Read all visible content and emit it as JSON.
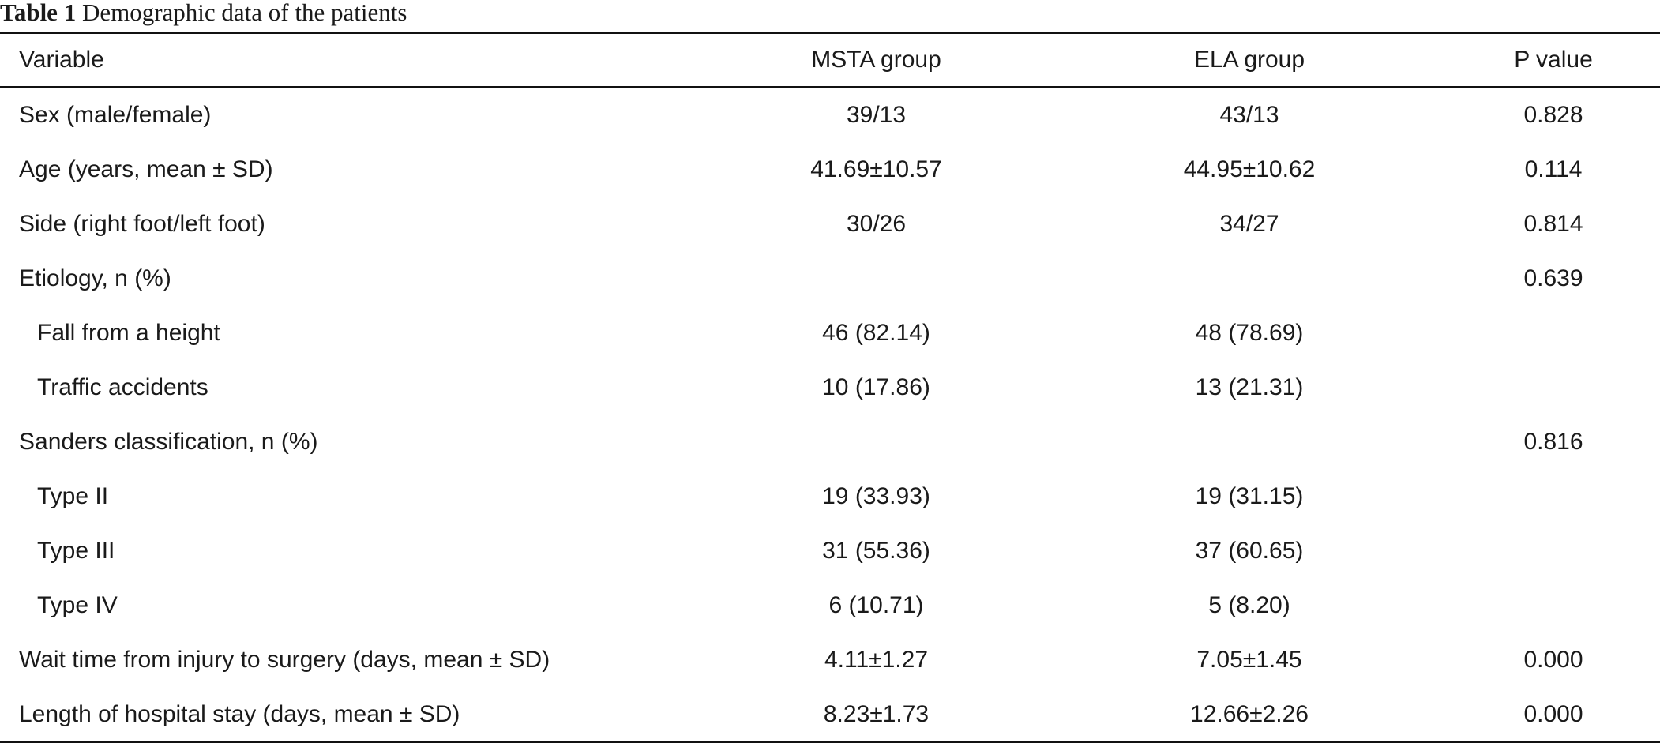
{
  "caption": {
    "label": "Table 1",
    "text": "Demographic data of the patients"
  },
  "table": {
    "headers": [
      "Variable",
      "MSTA group",
      "ELA group",
      "P value"
    ],
    "rows": [
      {
        "variable": "Sex (male/female)",
        "msta": "39/13",
        "ela": "43/13",
        "p": "0.828",
        "indent": false
      },
      {
        "variable": "Age (years, mean ± SD)",
        "msta": "41.69±10.57",
        "ela": "44.95±10.62",
        "p": "0.114",
        "indent": false
      },
      {
        "variable": "Side (right foot/left foot)",
        "msta": "30/26",
        "ela": "34/27",
        "p": "0.814",
        "indent": false
      },
      {
        "variable": "Etiology, n (%)",
        "msta": "",
        "ela": "",
        "p": "0.639",
        "indent": false
      },
      {
        "variable": "Fall from a height",
        "msta": "46 (82.14)",
        "ela": "48 (78.69)",
        "p": "",
        "indent": true
      },
      {
        "variable": "Traffic accidents",
        "msta": "10 (17.86)",
        "ela": "13 (21.31)",
        "p": "",
        "indent": true
      },
      {
        "variable": "Sanders classification, n (%)",
        "msta": "",
        "ela": "",
        "p": "0.816",
        "indent": false
      },
      {
        "variable": "Type II",
        "msta": "19 (33.93)",
        "ela": "19 (31.15)",
        "p": "",
        "indent": true
      },
      {
        "variable": "Type III",
        "msta": "31 (55.36)",
        "ela": "37 (60.65)",
        "p": "",
        "indent": true
      },
      {
        "variable": "Type IV",
        "msta": "6 (10.71)",
        "ela": "5 (8.20)",
        "p": "",
        "indent": true
      },
      {
        "variable": "Wait time from injury to surgery (days, mean ± SD)",
        "msta": "4.11±1.27",
        "ela": "7.05±1.45",
        "p": "0.000",
        "indent": false
      },
      {
        "variable": "Length of hospital stay (days, mean ± SD)",
        "msta": "8.23±1.73",
        "ela": "12.66±2.26",
        "p": "0.000",
        "indent": false
      }
    ]
  }
}
